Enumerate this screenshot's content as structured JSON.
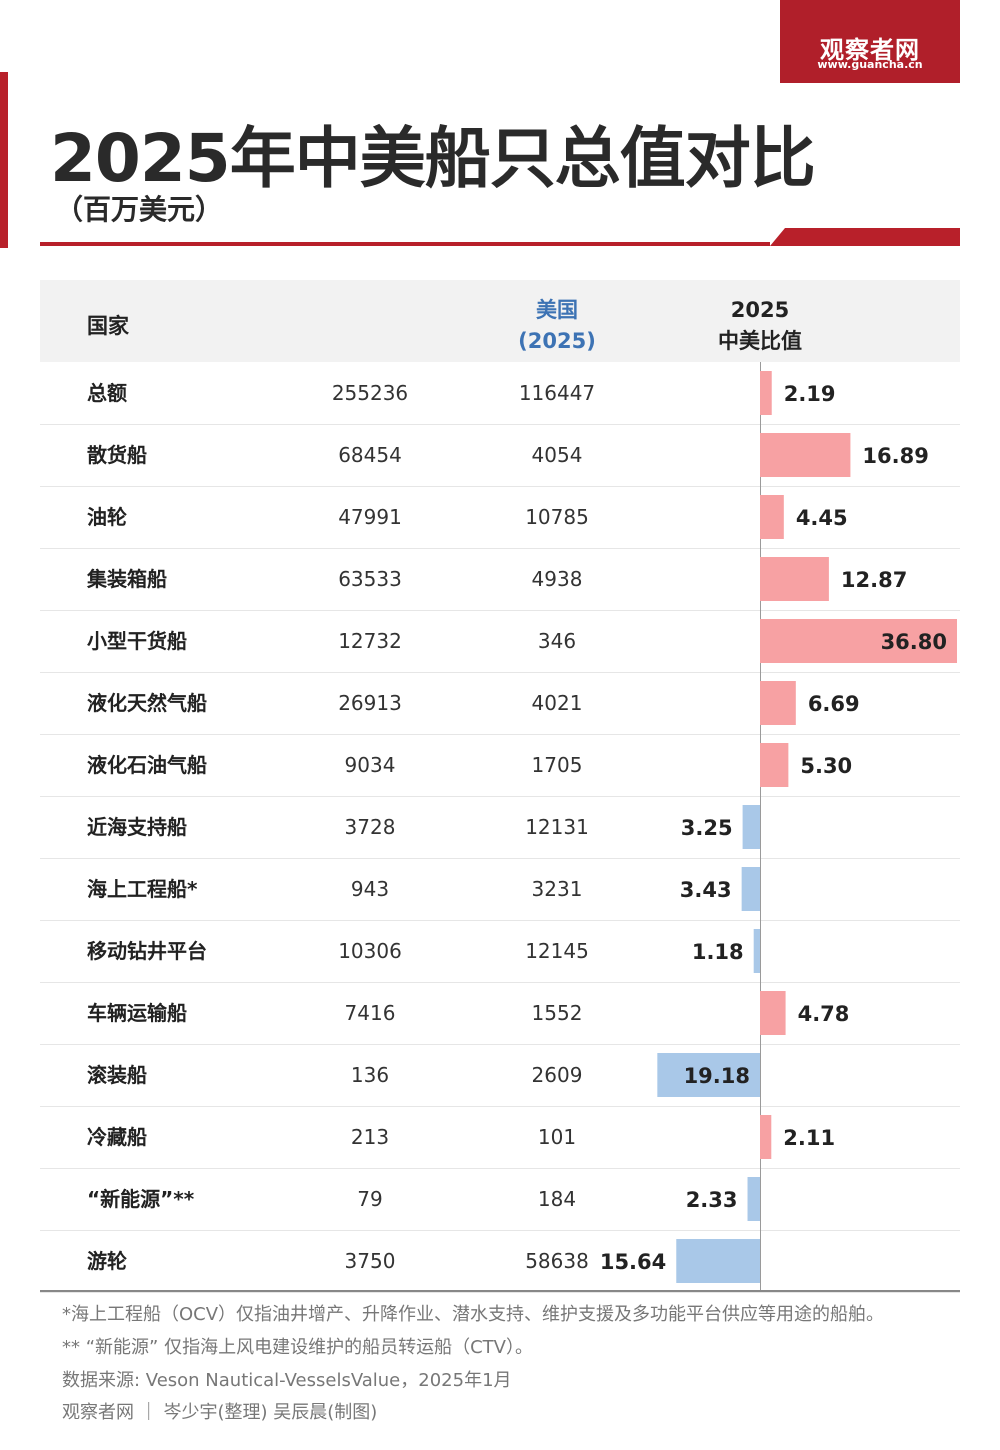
{
  "logo": {
    "cn": "观察者网",
    "en": "www.guancha.cn"
  },
  "title": "2025年中美船只总值对比",
  "subtitle": "（百万美元）",
  "colors": {
    "positive": "#f7a1a3",
    "negative": "#a9c8e8",
    "accent": "#b8202a",
    "us_header": "#3d73b4"
  },
  "table": {
    "col_country": "国家",
    "col_us_line1": "美国",
    "col_us_line2": "(2025)",
    "col_ratio_line1": "2025",
    "col_ratio_line2": "中美比值"
  },
  "chart_data": {
    "type": "bar",
    "categories": [
      "总额",
      "散货船",
      "油轮",
      "集装箱船",
      "小型干货船",
      "液化天然气船",
      "液化石油气船",
      "近海支持船",
      "海上工程船*",
      "移动钻井平台",
      "车辆运输船",
      "滚装船",
      "冷藏船",
      "“新能源”**",
      "游轮"
    ],
    "china": [
      255236,
      68454,
      47991,
      63533,
      12732,
      26913,
      9034,
      3728,
      943,
      10306,
      7416,
      136,
      213,
      79,
      3750
    ],
    "us": [
      116447,
      4054,
      10785,
      4938,
      346,
      4021,
      1705,
      12131,
      3231,
      12145,
      1552,
      2609,
      101,
      184,
      58638
    ],
    "ratio": [
      "2.19",
      "16.89",
      "4.45",
      "12.87",
      "36.80",
      "6.69",
      "5.30",
      "3.25",
      "3.43",
      "1.18",
      "4.78",
      "19.18",
      "2.11",
      "2.33",
      "15.64"
    ],
    "direction": [
      "cn",
      "cn",
      "cn",
      "cn",
      "cn",
      "cn",
      "cn",
      "us",
      "us",
      "us",
      "cn",
      "us",
      "cn",
      "us",
      "us"
    ]
  },
  "notes": [
    "*海上工程船（OCV）仅指油井增产、升降作业、潜水支持、维护支援及多功能平台供应等用途的船舶。",
    "** “新能源” 仅指海上风电建设维护的船员转运船（CTV）。",
    "数据来源: Veson Nautical-VesselsValue，2025年1月",
    "观察者网 ｜ 岑少宇(整理)  吴辰晨(制图)"
  ]
}
